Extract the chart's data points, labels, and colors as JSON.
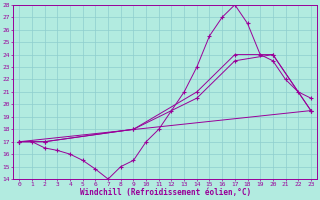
{
  "xlabel": "Windchill (Refroidissement éolien,°C)",
  "ylabel": "",
  "bg_color": "#b2ebe0",
  "grid_color": "#8ecece",
  "line_color": "#990099",
  "xlim": [
    -0.5,
    23.5
  ],
  "ylim": [
    14,
    28
  ],
  "xticks": [
    0,
    1,
    2,
    3,
    4,
    5,
    6,
    7,
    8,
    9,
    10,
    11,
    12,
    13,
    14,
    15,
    16,
    17,
    18,
    19,
    20,
    21,
    22,
    23
  ],
  "yticks": [
    14,
    15,
    16,
    17,
    18,
    19,
    20,
    21,
    22,
    23,
    24,
    25,
    26,
    27,
    28
  ],
  "series1_x": [
    0,
    1,
    2,
    3,
    4,
    5,
    6,
    7,
    8,
    9,
    10,
    11,
    12,
    13,
    14,
    15,
    16,
    17,
    18,
    19,
    20,
    21,
    22,
    23
  ],
  "series1_y": [
    17.0,
    17.0,
    16.5,
    16.3,
    16.0,
    15.5,
    14.8,
    14.0,
    15.0,
    15.5,
    17.0,
    18.0,
    19.5,
    21.0,
    23.0,
    25.5,
    27.0,
    28.0,
    26.5,
    24.0,
    23.5,
    22.0,
    21.0,
    20.5
  ],
  "series2_x": [
    0,
    23
  ],
  "series2_y": [
    17.0,
    19.5
  ],
  "series3_x": [
    0,
    2,
    9,
    14,
    17,
    20,
    23
  ],
  "series3_y": [
    17.0,
    17.0,
    18.0,
    20.5,
    23.5,
    24.0,
    19.5
  ],
  "series4_x": [
    0,
    2,
    9,
    14,
    17,
    20,
    23
  ],
  "series4_y": [
    17.0,
    17.0,
    18.0,
    21.0,
    24.0,
    24.0,
    19.5
  ]
}
